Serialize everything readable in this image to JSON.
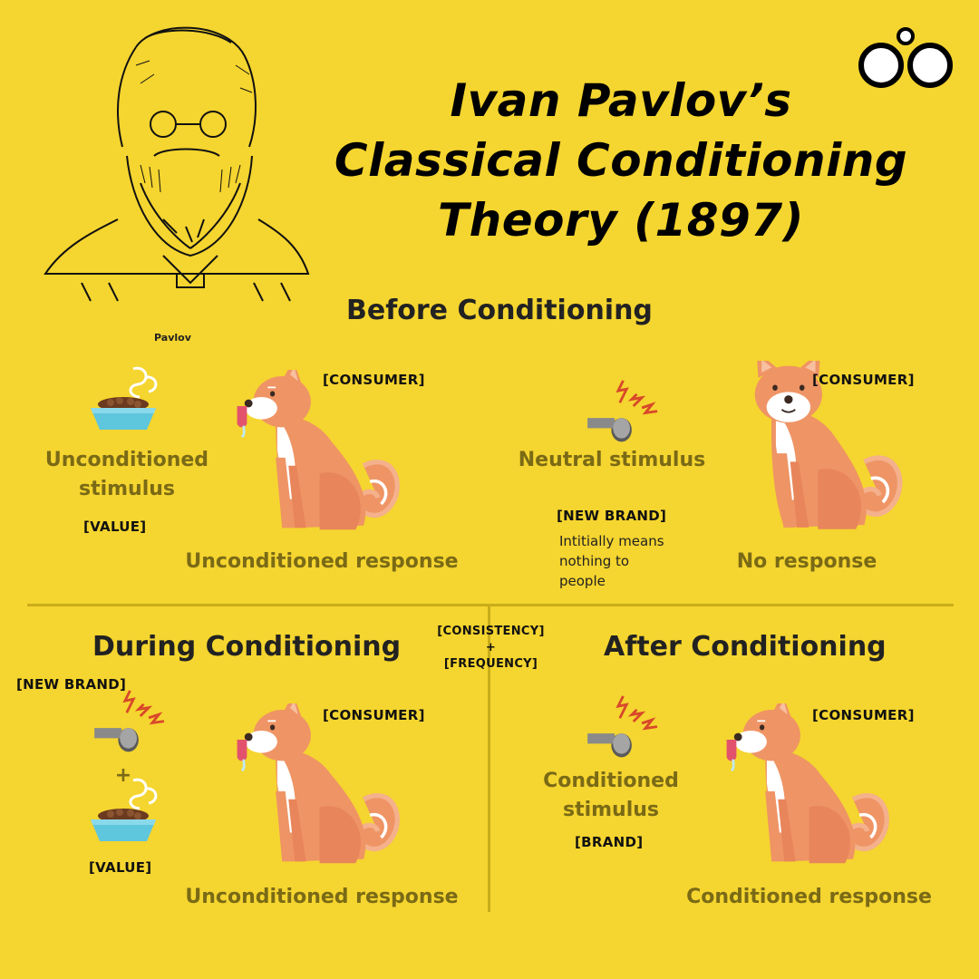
{
  "title": {
    "line1": "Ivan Pavlov’s",
    "line2": "Classical Conditioning",
    "line3": "Theory (1897)"
  },
  "portrait": {
    "caption": "Pavlov"
  },
  "logo": {
    "icon": "infinity-logo-icon"
  },
  "before": {
    "heading": "Before Conditioning",
    "left": {
      "stimulus_line1": "Unconditioned",
      "stimulus_line2": "stimulus",
      "stimulus_tag": "[VALUE]",
      "consumer_tag": "[CONSUMER]",
      "response": "Unconditioned response"
    },
    "right": {
      "stimulus": "Neutral stimulus",
      "brand_tag": "[NEW BRAND]",
      "note_line1": "Intitially means",
      "note_line2": "nothing to",
      "note_line3": "people",
      "consumer_tag": "[CONSUMER]",
      "response": "No response"
    }
  },
  "middle": {
    "consistency": "[CONSISTENCY]",
    "plus": "+",
    "frequency": "[FREQUENCY]"
  },
  "during": {
    "heading": "During Conditioning",
    "brand_tag": "[NEW BRAND]",
    "plus": "+",
    "value_tag": "[VALUE]",
    "consumer_tag": "[CONSUMER]",
    "response": "Unconditioned response"
  },
  "after": {
    "heading": "After Conditioning",
    "stimulus_line1": "Conditioned",
    "stimulus_line2": "stimulus",
    "brand_tag": "[BRAND]",
    "consumer_tag": "[CONSUMER]",
    "response": "Conditioned response"
  },
  "colors": {
    "background": "#f5d52f",
    "dog": "#ef9465",
    "dog_white": "#ffffff",
    "bowl": "#5ec6dd",
    "olive_text": "#7a6a16",
    "divider": "#c9ad19",
    "spark": "#d8482a"
  }
}
